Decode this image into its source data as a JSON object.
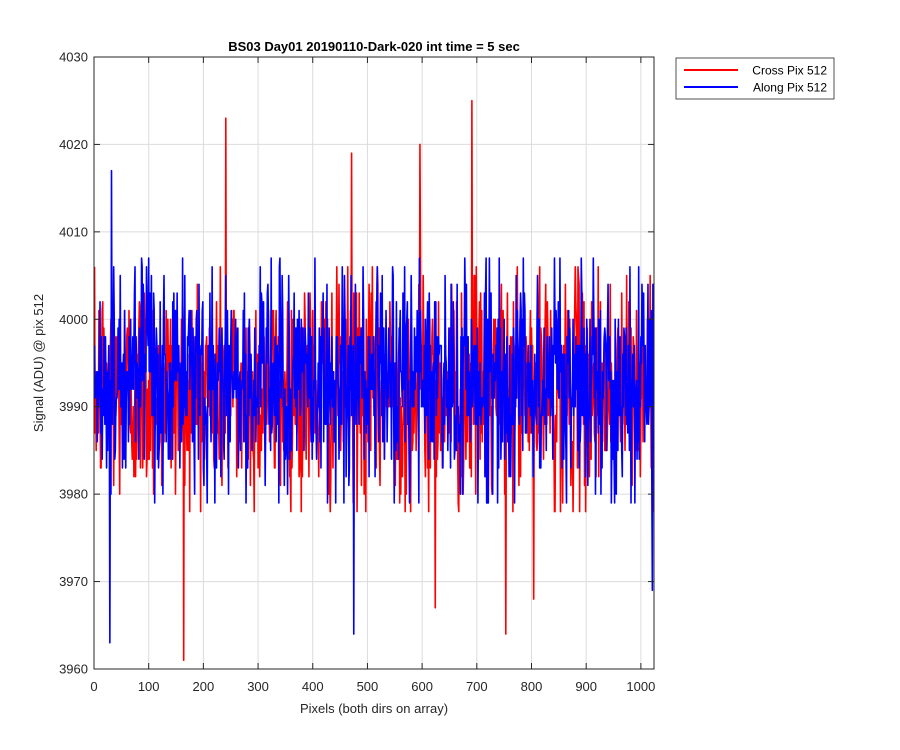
{
  "chart_data": {
    "type": "line",
    "title": "BS03 Day01 20190110-Dark-020 int time = 5 sec",
    "xlabel": "Pixels (both dirs on array)",
    "ylabel": "Signal (ADU) @ pix 512",
    "xlim": [
      0,
      1024
    ],
    "ylim": [
      3960,
      4030
    ],
    "xticks": [
      0,
      100,
      200,
      300,
      400,
      500,
      600,
      700,
      800,
      900,
      1000
    ],
    "yticks": [
      3960,
      3970,
      3980,
      3990,
      4000,
      4010,
      4020,
      4030
    ],
    "grid": true,
    "legend_position": "outside-top-right",
    "series": [
      {
        "name": "Cross Pix 512",
        "color": "#ff0000",
        "mean": 3992,
        "extremes": [
          [
            163,
            3961
          ],
          [
            240,
            4023
          ],
          [
            470,
            4019
          ],
          [
            595,
            4020
          ],
          [
            623,
            3967
          ],
          [
            690,
            4025
          ],
          [
            752,
            3964
          ],
          [
            803,
            3968
          ]
        ]
      },
      {
        "name": "Along Pix 512",
        "color": "#0000ff",
        "mean": 3993,
        "extremes": [
          [
            28,
            3963
          ],
          [
            31,
            4017
          ],
          [
            474,
            3964
          ],
          [
            1020,
            3969
          ]
        ]
      }
    ]
  }
}
